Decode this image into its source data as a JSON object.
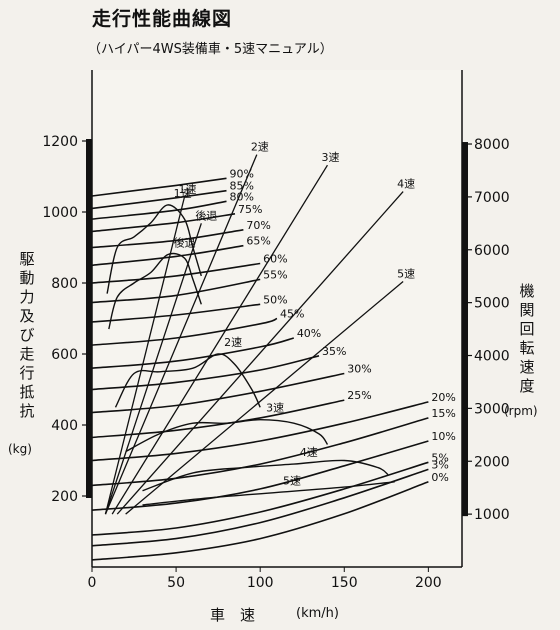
{
  "title": "走行性能曲線図",
  "subtitle": "（ハイパー4WS装備車・5速マニュアル）",
  "chart_data": {
    "type": "line",
    "xlabel": "車　速",
    "x_unit": "(km/h)",
    "xlim": [
      0,
      220
    ],
    "x_ticks": [
      "0",
      "50",
      "100",
      "150",
      "200"
    ],
    "ylabel_left": "駆動力 及び 走行抵抗",
    "ylabel_left_unit": "(kg)",
    "ylim_left": [
      0,
      1400
    ],
    "y_ticks_left": [
      "200",
      "400",
      "600",
      "800",
      "1000",
      "1200"
    ],
    "ylabel_right": "機関回転速度",
    "ylabel_right_unit": "(rpm)",
    "ylim_right": [
      0,
      9400
    ],
    "y_ticks_right": [
      "1000",
      "2000",
      "3000",
      "4000",
      "5000",
      "6000",
      "7000",
      "8000"
    ],
    "resistance_curves": [
      {
        "label": "0%",
        "x": [
          0,
          50,
          100,
          150,
          200
        ],
        "y": [
          20,
          40,
          80,
          150,
          240
        ]
      },
      {
        "label": "3%",
        "x": [
          0,
          50,
          100,
          150,
          200
        ],
        "y": [
          60,
          80,
          125,
          195,
          275
        ]
      },
      {
        "label": "5%",
        "x": [
          0,
          50,
          100,
          150,
          200
        ],
        "y": [
          90,
          110,
          155,
          220,
          295
        ]
      },
      {
        "label": "10%",
        "x": [
          0,
          50,
          100,
          150,
          200
        ],
        "y": [
          160,
          180,
          220,
          285,
          355
        ]
      },
      {
        "label": "15%",
        "x": [
          0,
          50,
          100,
          150,
          200
        ],
        "y": [
          230,
          250,
          290,
          350,
          420
        ]
      },
      {
        "label": "20%",
        "x": [
          0,
          50,
          100,
          150,
          200
        ],
        "y": [
          300,
          320,
          355,
          405,
          465
        ]
      },
      {
        "label": "25%",
        "x": [
          0,
          50,
          100,
          150
        ],
        "y": [
          365,
          385,
          420,
          470
        ]
      },
      {
        "label": "30%",
        "x": [
          0,
          50,
          100,
          150
        ],
        "y": [
          435,
          455,
          495,
          545
        ]
      },
      {
        "label": "35%",
        "x": [
          0,
          50,
          100,
          135
        ],
        "y": [
          500,
          520,
          555,
          595
        ]
      },
      {
        "label": "40%",
        "x": [
          0,
          50,
          100,
          120
        ],
        "y": [
          560,
          580,
          620,
          645
        ]
      },
      {
        "label": "45%",
        "x": [
          0,
          50,
          100,
          110
        ],
        "y": [
          625,
          645,
          685,
          700
        ]
      },
      {
        "label": "50%",
        "x": [
          0,
          50,
          100
        ],
        "y": [
          690,
          710,
          740
        ]
      },
      {
        "label": "55%",
        "x": [
          0,
          50,
          100
        ],
        "y": [
          745,
          765,
          810
        ]
      },
      {
        "label": "60%",
        "x": [
          0,
          50,
          100
        ],
        "y": [
          800,
          820,
          855
        ]
      },
      {
        "label": "65%",
        "x": [
          0,
          50,
          90
        ],
        "y": [
          850,
          875,
          905
        ]
      },
      {
        "label": "70%",
        "x": [
          0,
          50,
          90
        ],
        "y": [
          900,
          920,
          950
        ]
      },
      {
        "label": "75%",
        "x": [
          0,
          50,
          85
        ],
        "y": [
          945,
          970,
          995
        ]
      },
      {
        "label": "80%",
        "x": [
          0,
          50,
          80
        ],
        "y": [
          980,
          1005,
          1030
        ]
      },
      {
        "label": "85%",
        "x": [
          0,
          50,
          80
        ],
        "y": [
          1010,
          1040,
          1060
        ]
      },
      {
        "label": "90%",
        "x": [
          0,
          50,
          80
        ],
        "y": [
          1045,
          1075,
          1095
        ]
      }
    ],
    "driving_force_curves": [
      {
        "label": "1速",
        "x": [
          9,
          15,
          25,
          35,
          45,
          55,
          60,
          65
        ],
        "y": [
          770,
          900,
          930,
          970,
          1020,
          980,
          900,
          820
        ]
      },
      {
        "label": "後退",
        "x": [
          10,
          15,
          25,
          35,
          45,
          55,
          60,
          65
        ],
        "y": [
          670,
          760,
          800,
          830,
          880,
          870,
          810,
          740
        ]
      },
      {
        "label": "2速",
        "x": [
          14,
          25,
          40,
          60,
          75,
          85,
          95,
          100
        ],
        "y": [
          450,
          545,
          550,
          560,
          600,
          570,
          500,
          450
        ]
      },
      {
        "label": "3速",
        "x": [
          20,
          40,
          60,
          80,
          100,
          120,
          135,
          140
        ],
        "y": [
          325,
          375,
          405,
          405,
          415,
          405,
          375,
          345
        ]
      },
      {
        "label": "4速",
        "x": [
          30,
          60,
          90,
          120,
          150,
          170,
          176
        ],
        "y": [
          215,
          265,
          280,
          290,
          300,
          280,
          260
        ]
      },
      {
        "label": "5速",
        "x": [
          30,
          70,
          110,
          150,
          180
        ],
        "y": [
          175,
          195,
          210,
          225,
          240
        ]
      }
    ],
    "engine_speed_lines": [
      {
        "label": "1速",
        "x": [
          8,
          55
        ],
        "y": [
          1000,
          7000
        ]
      },
      {
        "label": "後退",
        "x": [
          8,
          65
        ],
        "y": [
          1000,
          6500
        ]
      },
      {
        "label": "2速",
        "x": [
          8,
          98
        ],
        "y": [
          1000,
          7800
        ]
      },
      {
        "label": "3速",
        "x": [
          12,
          140
        ],
        "y": [
          1000,
          7600
        ]
      },
      {
        "label": "4速",
        "x": [
          15,
          185
        ],
        "y": [
          1000,
          7100
        ]
      },
      {
        "label": "5速",
        "x": [
          20,
          185
        ],
        "y": [
          1000,
          5400
        ]
      }
    ]
  }
}
